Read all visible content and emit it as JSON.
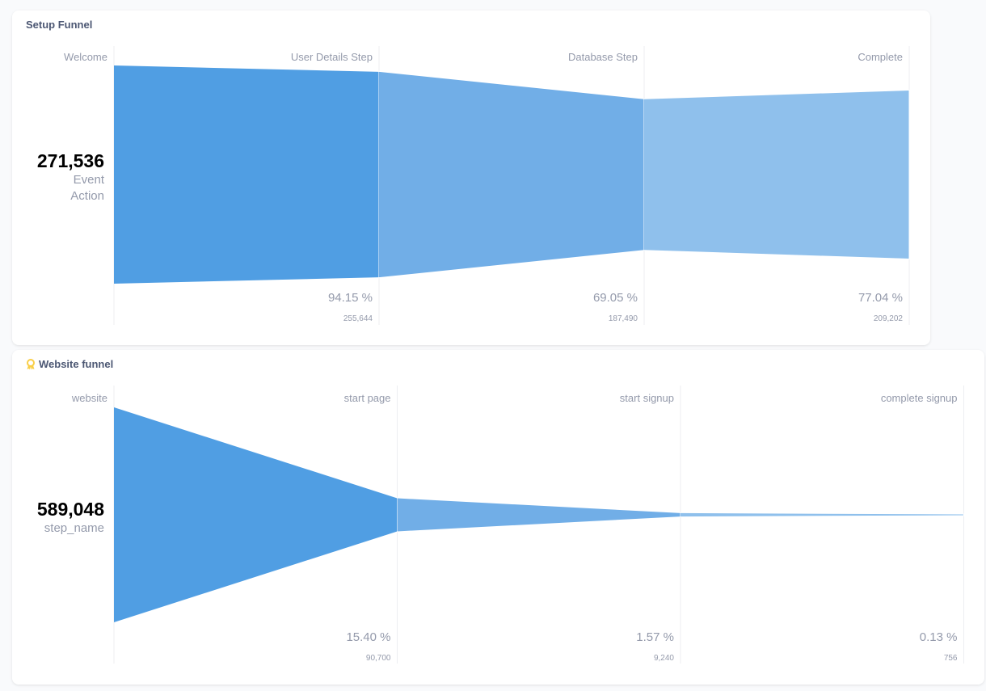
{
  "colors": {
    "page_bg": "#F9FAFC",
    "step_fills": [
      "#509EE3",
      "#71AEE7",
      "#8FC0EC"
    ],
    "grid": "#EDEEF1",
    "muted_text": "#949AAB",
    "title_text": "#4C5773",
    "icon_yellow": "#F9CF48"
  },
  "cards": [
    {
      "title": "Setup Funnel",
      "icon": null,
      "total": "271,536",
      "metric_lines": [
        "Event",
        "Action"
      ],
      "steps": [
        {
          "name": "Welcome",
          "percent": null,
          "count": "271,536",
          "value": 271536
        },
        {
          "name": "User Details Step",
          "percent": "94.15 %",
          "count": "255,644",
          "value": 255644
        },
        {
          "name": "Database Step",
          "percent": "69.05 %",
          "count": "187,490",
          "value": 187490
        },
        {
          "name": "Complete",
          "percent": "77.04 %",
          "count": "209,202",
          "value": 209202
        }
      ]
    },
    {
      "title": "Website funnel",
      "icon": "ribbon-award-icon",
      "total": "589,048",
      "metric_lines": [
        "step_name"
      ],
      "steps": [
        {
          "name": "website",
          "percent": null,
          "count": "589,048",
          "value": 589048
        },
        {
          "name": "start page",
          "percent": "15.40 %",
          "count": "90,700",
          "value": 90700
        },
        {
          "name": "start signup",
          "percent": "1.57 %",
          "count": "9,240",
          "value": 9240
        },
        {
          "name": "complete signup",
          "percent": "0.13 %",
          "count": "756",
          "value": 756
        }
      ]
    }
  ],
  "chart_data": [
    {
      "type": "funnel",
      "title": "Setup Funnel",
      "metric": "Event Action",
      "categories": [
        "Welcome",
        "User Details Step",
        "Database Step",
        "Complete"
      ],
      "values": [
        271536,
        255644,
        187490,
        209202
      ],
      "percent_of_first": [
        100,
        94.15,
        69.05,
        77.04
      ]
    },
    {
      "type": "funnel",
      "title": "Website funnel",
      "metric": "step_name",
      "categories": [
        "website",
        "start page",
        "start signup",
        "complete signup"
      ],
      "values": [
        589048,
        90700,
        9240,
        756
      ],
      "percent_of_first": [
        100,
        15.4,
        1.57,
        0.13
      ]
    }
  ]
}
